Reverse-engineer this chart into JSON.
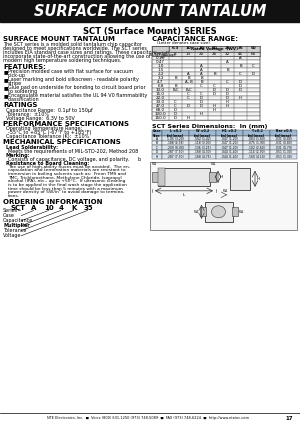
{
  "title_banner": "SURFACE MOUNT TANTALUM",
  "subtitle": "SCT (Surface Mount) SERIES",
  "section1_title": "SURFACE MOUNT TANTALUM",
  "section1_body": [
    "The SCT series is a molded solid tantalum chip capacitor",
    "designed to meet specifications worldwide. The SCT series",
    "includes EIA standard case sizes and ratings. These capacitors",
    "incorporate state-of-the-art construction allowing the use of",
    "modern high temperature soldering techniques."
  ],
  "features_title": "FEATURES:",
  "features": [
    [
      "Precision molded case with flat surface for vacuum",
      "pick-up"
    ],
    [
      "Laser marking and bold silkscreen - readable polarity",
      "stripe"
    ],
    [
      "Glue pad on underside for bonding to circuit board prior",
      "to soldering"
    ],
    [
      "Encapsulate material satisfies the UL 94 V0 flammability",
      "classification"
    ]
  ],
  "ratings_title": "RATINGS",
  "ratings": [
    "Capacitance Range:  0.1μf to 150μf",
    "Tolerance:  ±10%",
    "Voltage Range:  6.3V to 50V"
  ],
  "perf_title": "PERFORMANCE SPECIFICATIONS",
  "perf_sub": "Operating Temperature Range:",
  "perf_temp": "-55°C to +85°C (-67°F to +185°F)",
  "perf_cap": "Capacitance Tolerance (K):  ±10%",
  "mech_title": "MECHANICAL SPECIFICATIONS",
  "mech_lead": "Lead Solderability:",
  "mech_lead_body": "Meets the requirements of MIL-STD-202, Method 208",
  "mech_mark": "Marking:",
  "mech_mark_body": "Consists of capacitance, DC voltage, and polarity.      b",
  "mech_resist": "Resistance to Board Cleaning:",
  "mech_resist_body": [
    "The use of high-ability fluxes must be avoided.  The en-",
    "capsulation and termination materials are resistant to",
    "immersion in boiling solvents such as:  Freon TMS and",
    "TMC, Trichloroethane, Methylene Chloride, Isopropyl",
    "alcohol (IPA), etc., up to +50°C.  If ultrasonic cleaning",
    "is to be applied in the final wash stage the application",
    "time should be less than 5 minutes with a maximum",
    "power density of 5W/in² to avoid damage to termina-",
    "tions."
  ],
  "order_title": "ORDERING INFORMATION",
  "order_parts": [
    "SCT",
    "A",
    "10",
    "4",
    "K",
    "35"
  ],
  "order_labels": [
    "Series",
    "Case",
    "Capacitance",
    "Multiplier",
    "Tolerance",
    "Voltage"
  ],
  "cap_range_title": "CAPACITANCE RANGE:",
  "cap_range_sub": "(Letter denotes case size)",
  "voltages": [
    "6.3",
    "10",
    "16",
    "20",
    "25",
    "35",
    "50"
  ],
  "surge_v": [
    "8",
    "13",
    "20",
    "26",
    "32",
    "46",
    "65"
  ],
  "caps": [
    "0.10",
    "0.47",
    "1.0",
    "1.5",
    "2.2",
    "3.3",
    "4.7",
    "6.8",
    "10.0",
    "15.0",
    "22.0",
    "33.0",
    "47.0",
    "68.0",
    "100.0",
    "150.0"
  ],
  "cap_table_data": {
    "0.10": {
      "35": "A"
    },
    "0.47": {
      "25": "A"
    },
    "1.0": {
      "16": "A",
      "35": "B",
      "50": "C"
    },
    "1.5": {
      "16": "A",
      "25": "B"
    },
    "2.2": {
      "10": "A",
      "16": "A",
      "20": "B",
      "35": "C",
      "50": "D"
    },
    "3.3": {
      "6.3": "B",
      "10": "B",
      "16": "B"
    },
    "4.7": {
      "10": "A, B",
      "16": "B",
      "25": "C",
      "35": "D"
    },
    "6.8": {
      "6.3": "B",
      "16": "C",
      "20": "C",
      "35": "D"
    },
    "10.0": {
      "6.3": "B,C",
      "10": "B,C",
      "20": "D",
      "25": "D",
      "35": "D"
    },
    "15.0": {
      "10": "C",
      "16": "C",
      "20": "D",
      "25": "D"
    },
    "22.0": {
      "10": "C",
      "16": "D",
      "25": "D",
      "35": "H"
    },
    "33.0": {
      "6.3": "C",
      "16": "D",
      "25": "H"
    },
    "47.0": {
      "6.3": "C",
      "10": "D",
      "16": "D",
      "20": "H",
      "25": "H"
    },
    "68.0": {
      "6.3": "D",
      "20": "H"
    },
    "100.0": {
      "6.3": "D",
      "16": "H"
    },
    "150.0": {
      "6.3": "D",
      "10": "H"
    }
  },
  "dim_title": "SCT Series Dimensions:  In (mm)",
  "dim_headers": [
    "Case\nSize",
    "L ±0.2\n(in)(max)",
    "W ±0.2\n(in)(max)",
    "H1 ±0.2\n(in)(max)",
    "T ±0.2\n(in)(max)",
    "Bar ±0.5\n(in)(max)"
  ],
  "dim_data": [
    [
      "A",
      "1.05 (3.20)",
      ".562 (1.42)",
      ".047 (1.20)",
      ".063 (1.60)",
      ".031 (0.80)"
    ],
    [
      "B",
      ".188 (4.78)",
      ".118 (3.00)",
      ".047 (1.20)",
      ".075 (1.90)",
      ".031 (0.80)"
    ],
    [
      "C",
      ".200 (6.00)",
      ".136 (3.25)",
      ".047 (1.20)",
      ".102 (2.60)",
      ".031 (0.79)"
    ],
    [
      "D",
      ".287 (7.30)",
      ".168 (4.30)",
      ".044 (1.40)",
      ".114 (2.90)",
      ".051 (1.30)"
    ],
    [
      "H",
      ".287 (7.30)",
      ".168 (4.75)",
      ".044 (1.40)",
      ".160 (4.10)",
      ".051 (1.30)"
    ]
  ],
  "footer": "NTE Electronics, Inc.  ■  Voice (800) 631-1250 (973) 748-5089  ■  FAX (973) 748-6224  ■  http://www.nteinc.com",
  "footer_page": "17",
  "bg_color": "#ffffff",
  "banner_bg": "#111111",
  "banner_text_color": "#ffffff"
}
